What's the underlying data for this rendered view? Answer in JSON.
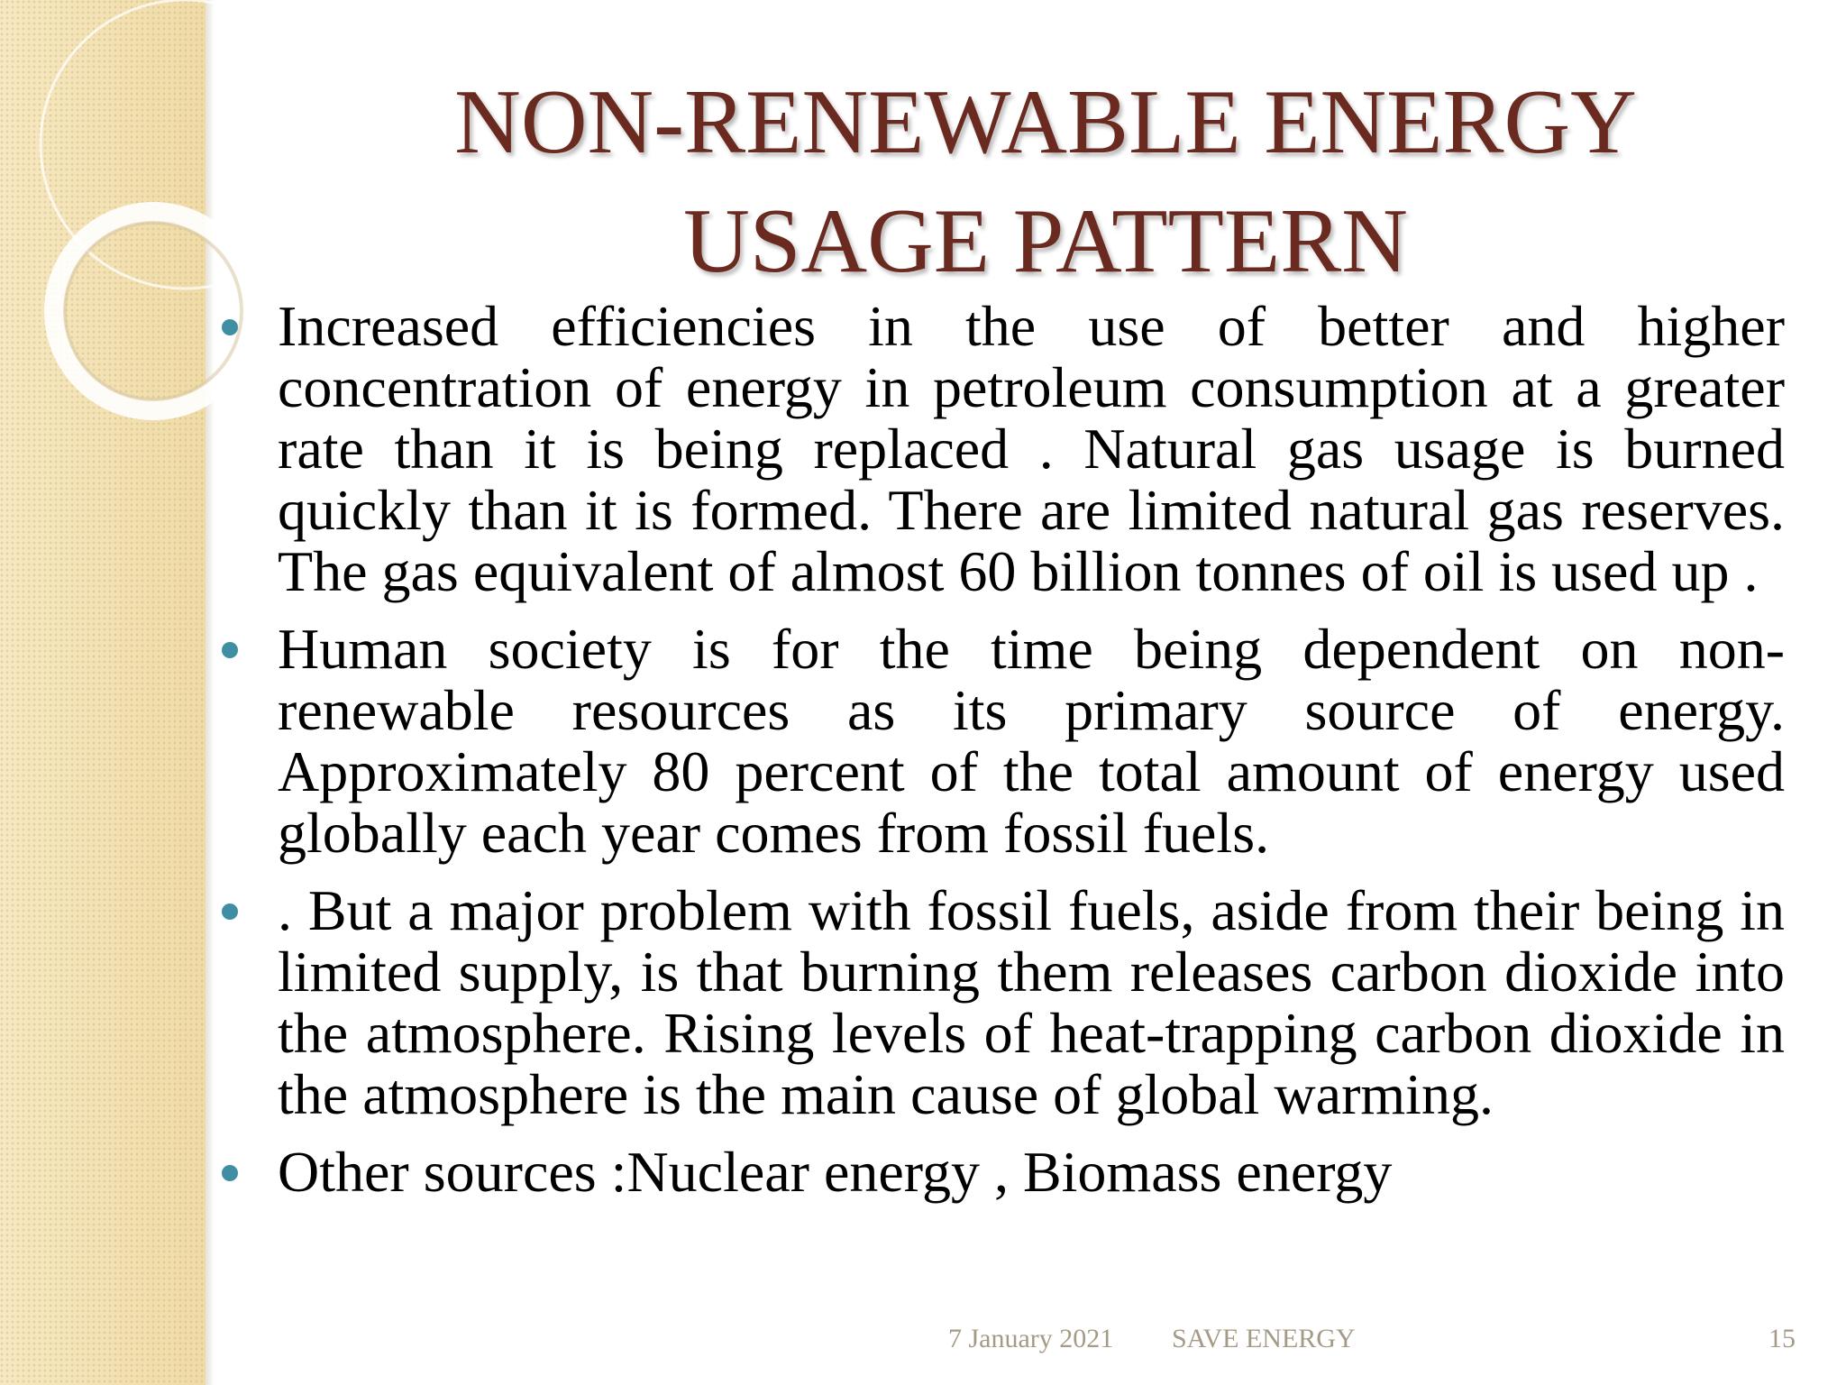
{
  "slide": {
    "title_lines": [
      "NON-RENEWABLE ENERGY",
      "USAGE PATTERN"
    ],
    "bullets": [
      " Increased efficiencies in the use of better and higher concentration of energy in petroleum consumption at a greater rate than it is being replaced .  Natural gas usage is burned quickly than it is formed. There are limited natural gas reserves.  The  gas equivalent of almost 60 billion tonnes of  oil is used up .",
      "Human society is for the time being dependent on non-renewable resources as its primary source of energy. Approximately 80 percent of the total amount of energy used globally each year comes from fossil fuels.",
      ". But a major problem with fossil fuels, aside from their being in limited supply, is that burning them releases carbon dioxide into the atmosphere. Rising levels of heat-trapping carbon dioxide in the atmosphere is the main cause of global warming.",
      "Other sources  :Nuclear energy  , Biomass energy"
    ],
    "footer": {
      "date": "7 January 2021",
      "event": "SAVE ENERGY",
      "page_number": "15"
    },
    "colors": {
      "title": "#6b2a1f",
      "bullet_marker": "#3f8ea3",
      "side_band": "#f3e2b4",
      "footer_text": "#a59a86"
    }
  }
}
